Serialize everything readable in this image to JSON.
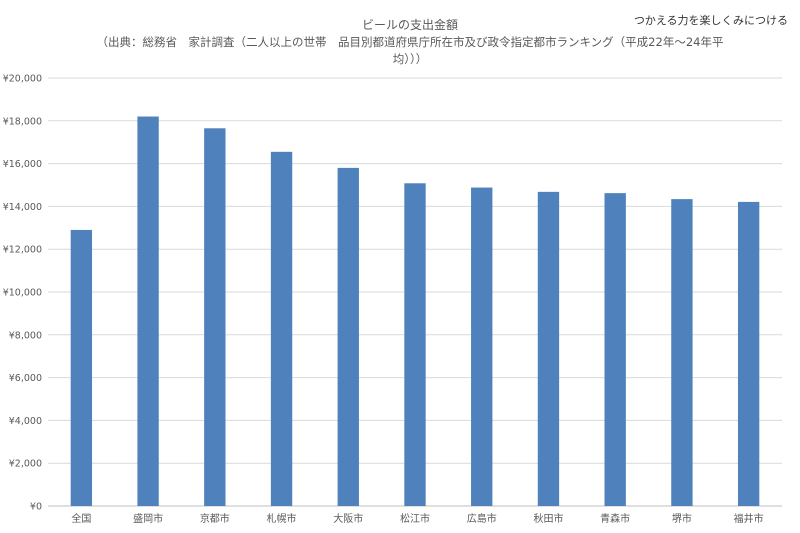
{
  "watermark": "つかえる力を楽しくみにつける",
  "chart_data": {
    "type": "bar",
    "title": "ビールの支出金額",
    "subtitle_lines": [
      "（出典：総務省　家計調査（二人以上の世帯　品目別都道府県庁所在市及び政令指定都市ランキング（平成22年〜24年平",
      "均）））"
    ],
    "categories": [
      "全国",
      "盛岡市",
      "京都市",
      "札幌市",
      "大阪市",
      "松江市",
      "広島市",
      "秋田市",
      "青森市",
      "堺市",
      "福井市"
    ],
    "values": [
      12900,
      18200,
      17650,
      16550,
      15800,
      15080,
      14880,
      14680,
      14620,
      14340,
      14210
    ],
    "y_ticks": [
      "¥0",
      "¥2,000",
      "¥4,000",
      "¥6,000",
      "¥8,000",
      "¥10,000",
      "¥12,000",
      "¥14,000",
      "¥16,000",
      "¥18,000",
      "¥20,000"
    ],
    "ylim": [
      0,
      20000
    ],
    "grid": true,
    "colors": {
      "bar": "#4f81bd",
      "grid": "#d9d9d9",
      "axis": "#bfbfbf",
      "text": "#595959"
    }
  }
}
